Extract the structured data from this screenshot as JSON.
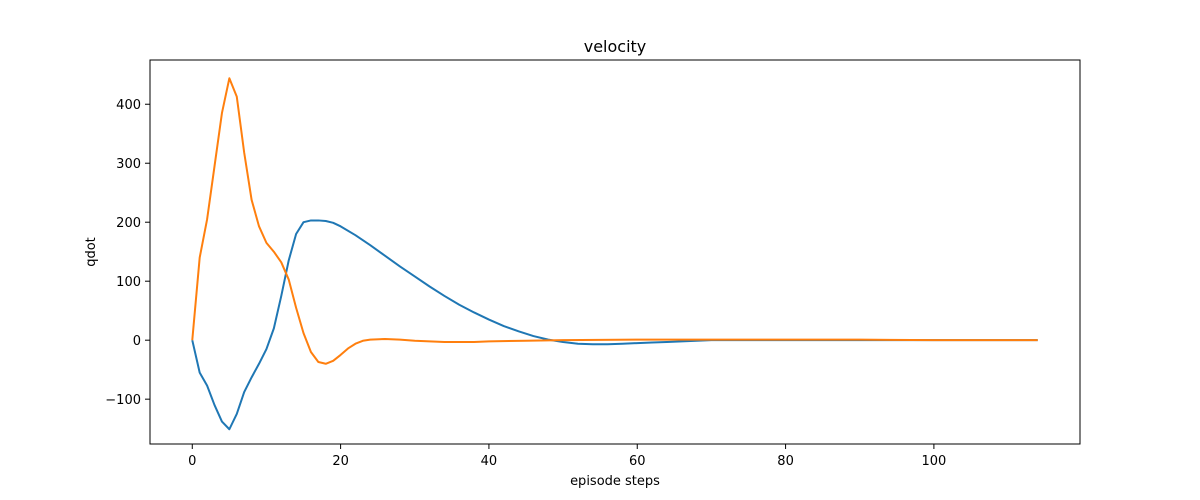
{
  "chart_data": {
    "type": "line",
    "title": "velocity",
    "xlabel": "episode steps",
    "ylabel": "qdot",
    "xlim": [
      -5.7,
      119.7
    ],
    "ylim": [
      -176,
      475
    ],
    "xticks": [
      0,
      20,
      40,
      60,
      80,
      100
    ],
    "yticks": [
      -100,
      0,
      100,
      200,
      300,
      400
    ],
    "ytick_labels": [
      "−100",
      "0",
      "100",
      "200",
      "300",
      "400"
    ],
    "grid": false,
    "series": [
      {
        "color": "#1f77b4",
        "x": [
          0,
          1,
          2,
          3,
          4,
          5,
          6,
          7,
          8,
          9,
          10,
          11,
          12,
          13,
          14,
          15,
          16,
          17,
          18,
          19,
          20,
          22,
          24,
          26,
          28,
          30,
          32,
          34,
          36,
          38,
          40,
          42,
          44,
          46,
          48,
          50,
          52,
          54,
          56,
          58,
          60,
          62,
          64,
          66,
          68,
          70,
          75,
          80,
          85,
          90,
          95,
          100,
          105,
          110,
          114
        ],
        "y": [
          0,
          -55,
          -77,
          -110,
          -138,
          -151,
          -125,
          -88,
          -63,
          -40,
          -15,
          20,
          75,
          135,
          180,
          200,
          203,
          203,
          202,
          199,
          193,
          178,
          161,
          143,
          125,
          108,
          91,
          75,
          60,
          47,
          35,
          24,
          15,
          7,
          1,
          -3,
          -6,
          -7,
          -7,
          -6,
          -5,
          -4,
          -3,
          -2,
          -1,
          0,
          0,
          0,
          0,
          0,
          0,
          0,
          0,
          0,
          0
        ]
      },
      {
        "color": "#ff7f0e",
        "x": [
          0,
          1,
          2,
          3,
          4,
          5,
          6,
          7,
          8,
          9,
          10,
          11,
          12,
          13,
          14,
          15,
          16,
          17,
          18,
          19,
          20,
          21,
          22,
          23,
          24,
          26,
          28,
          30,
          32,
          34,
          36,
          38,
          40,
          45,
          50,
          60,
          70,
          80,
          90,
          100,
          110,
          114
        ],
        "y": [
          0,
          140,
          205,
          295,
          385,
          444,
          413,
          318,
          238,
          193,
          165,
          150,
          132,
          103,
          55,
          12,
          -20,
          -37,
          -40,
          -35,
          -25,
          -14,
          -6,
          -1,
          1,
          2,
          1,
          -1,
          -2,
          -3,
          -3,
          -3,
          -2,
          -1,
          0,
          1,
          1,
          1,
          1,
          0,
          0,
          0
        ]
      }
    ]
  }
}
